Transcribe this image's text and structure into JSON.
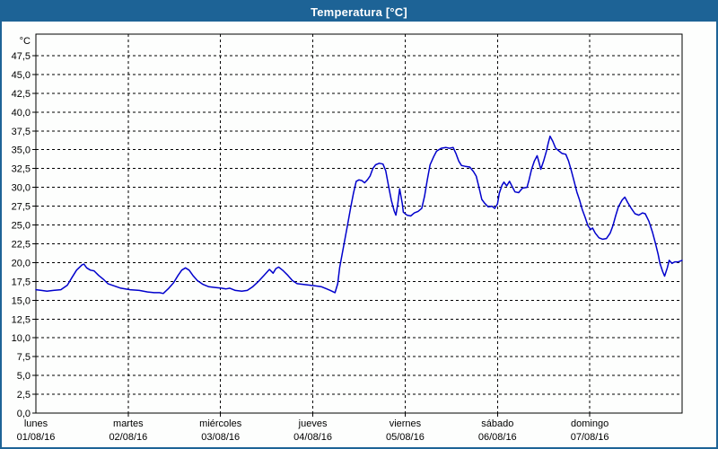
{
  "window": {
    "title": "Temperatura [°C]",
    "title_bg": "#1d6396",
    "title_color": "#ffffff",
    "frame_color": "#1d6396"
  },
  "chart_data": {
    "type": "line",
    "title": "Temperatura [°C]",
    "unit_label": "°C",
    "line_color": "#0000cc",
    "grid": "dashed",
    "plot_border_color": "#000000",
    "y_axis": {
      "min": 0,
      "max": 50,
      "tick_step": 2.5,
      "tick_values": [
        0,
        2.5,
        5,
        7.5,
        10,
        12.5,
        15,
        17.5,
        20,
        22.5,
        25,
        27.5,
        30,
        32.5,
        35,
        37.5,
        40,
        42.5,
        45,
        47.5
      ],
      "tick_labels": [
        "0,0",
        "2,5",
        "5,0",
        "7,5",
        "10,0",
        "12,5",
        "15,0",
        "17,5",
        "20,0",
        "22,5",
        "25,0",
        "27,5",
        "30,0",
        "32,5",
        "35,0",
        "37,5",
        "40,0",
        "42,5",
        "45,0",
        "47,5"
      ]
    },
    "x_axis": {
      "span_days": 7,
      "days": [
        {
          "name": "lunes",
          "date": "01/08/16"
        },
        {
          "name": "martes",
          "date": "02/08/16"
        },
        {
          "name": "miércoles",
          "date": "03/08/16"
        },
        {
          "name": "jueves",
          "date": "04/08/16"
        },
        {
          "name": "viernes",
          "date": "05/08/16"
        },
        {
          "name": "sábado",
          "date": "06/08/16"
        },
        {
          "name": "domingo",
          "date": "07/08/16"
        }
      ]
    },
    "series": [
      {
        "name": "Temperatura",
        "points": [
          [
            0,
            16.4
          ],
          [
            0.06,
            16.3
          ],
          [
            0.12,
            16.2
          ],
          [
            0.19,
            16.3
          ],
          [
            0.27,
            16.4
          ],
          [
            0.34,
            17.0
          ],
          [
            0.39,
            18.0
          ],
          [
            0.44,
            19.0
          ],
          [
            0.5,
            19.7
          ],
          [
            0.52,
            19.8
          ],
          [
            0.55,
            19.3
          ],
          [
            0.59,
            19.0
          ],
          [
            0.63,
            18.9
          ],
          [
            0.68,
            18.3
          ],
          [
            0.73,
            17.8
          ],
          [
            0.78,
            17.2
          ],
          [
            0.85,
            16.9
          ],
          [
            0.92,
            16.6
          ],
          [
            1.02,
            16.4
          ],
          [
            1.12,
            16.3
          ],
          [
            1.21,
            16.1
          ],
          [
            1.28,
            16.0
          ],
          [
            1.34,
            16.0
          ],
          [
            1.38,
            15.9
          ],
          [
            1.44,
            16.6
          ],
          [
            1.49,
            17.3
          ],
          [
            1.54,
            18.3
          ],
          [
            1.58,
            19.0
          ],
          [
            1.62,
            19.3
          ],
          [
            1.66,
            19.0
          ],
          [
            1.7,
            18.3
          ],
          [
            1.75,
            17.6
          ],
          [
            1.81,
            17.1
          ],
          [
            1.87,
            16.8
          ],
          [
            1.94,
            16.7
          ],
          [
            2.01,
            16.6
          ],
          [
            2.06,
            16.5
          ],
          [
            2.1,
            16.6
          ],
          [
            2.16,
            16.3
          ],
          [
            2.23,
            16.2
          ],
          [
            2.29,
            16.3
          ],
          [
            2.35,
            16.8
          ],
          [
            2.41,
            17.5
          ],
          [
            2.47,
            18.3
          ],
          [
            2.53,
            19.1
          ],
          [
            2.57,
            18.6
          ],
          [
            2.6,
            19.2
          ],
          [
            2.63,
            19.4
          ],
          [
            2.68,
            18.9
          ],
          [
            2.73,
            18.3
          ],
          [
            2.78,
            17.6
          ],
          [
            2.83,
            17.2
          ],
          [
            2.9,
            17.1
          ],
          [
            2.97,
            17.0
          ],
          [
            3.03,
            16.9
          ],
          [
            3.09,
            16.8
          ],
          [
            3.15,
            16.5
          ],
          [
            3.19,
            16.3
          ],
          [
            3.24,
            16.0
          ],
          [
            3.27,
            17.2
          ],
          [
            3.29,
            19.3
          ],
          [
            3.32,
            21.3
          ],
          [
            3.35,
            23.3
          ],
          [
            3.38,
            25.3
          ],
          [
            3.41,
            27.3
          ],
          [
            3.44,
            29.2
          ],
          [
            3.47,
            30.8
          ],
          [
            3.5,
            31.0
          ],
          [
            3.53,
            30.9
          ],
          [
            3.56,
            30.6
          ],
          [
            3.59,
            31.0
          ],
          [
            3.62,
            31.5
          ],
          [
            3.65,
            32.5
          ],
          [
            3.68,
            33.0
          ],
          [
            3.72,
            33.2
          ],
          [
            3.76,
            33.1
          ],
          [
            3.79,
            32.2
          ],
          [
            3.82,
            30.2
          ],
          [
            3.85,
            28.3
          ],
          [
            3.88,
            26.9
          ],
          [
            3.9,
            26.3
          ],
          [
            3.92,
            27.8
          ],
          [
            3.94,
            29.8
          ],
          [
            3.97,
            27.8
          ],
          [
            3.98,
            26.7
          ],
          [
            4.02,
            26.3
          ],
          [
            4.06,
            26.2
          ],
          [
            4.1,
            26.6
          ],
          [
            4.14,
            26.8
          ],
          [
            4.18,
            27.2
          ],
          [
            4.21,
            28.8
          ],
          [
            4.24,
            31.0
          ],
          [
            4.27,
            33.0
          ],
          [
            4.31,
            34.1
          ],
          [
            4.34,
            34.8
          ],
          [
            4.39,
            35.2
          ],
          [
            4.44,
            35.3
          ],
          [
            4.48,
            35.2
          ],
          [
            4.52,
            35.3
          ],
          [
            4.55,
            34.5
          ],
          [
            4.58,
            33.5
          ],
          [
            4.61,
            32.9
          ],
          [
            4.65,
            32.8
          ],
          [
            4.7,
            32.7
          ],
          [
            4.74,
            32.1
          ],
          [
            4.77,
            31.5
          ],
          [
            4.8,
            30.0
          ],
          [
            4.83,
            28.4
          ],
          [
            4.86,
            27.9
          ],
          [
            4.9,
            27.4
          ],
          [
            4.94,
            27.5
          ],
          [
            4.97,
            27.2
          ],
          [
            5.0,
            27.8
          ],
          [
            5.02,
            29.2
          ],
          [
            5.05,
            30.3
          ],
          [
            5.07,
            30.7
          ],
          [
            5.1,
            30.2
          ],
          [
            5.13,
            30.8
          ],
          [
            5.16,
            30.1
          ],
          [
            5.19,
            29.4
          ],
          [
            5.23,
            29.3
          ],
          [
            5.27,
            29.9
          ],
          [
            5.32,
            30.0
          ],
          [
            5.34,
            30.9
          ],
          [
            5.37,
            32.4
          ],
          [
            5.4,
            33.5
          ],
          [
            5.43,
            34.2
          ],
          [
            5.45,
            33.3
          ],
          [
            5.47,
            32.4
          ],
          [
            5.5,
            33.5
          ],
          [
            5.53,
            34.8
          ],
          [
            5.55,
            35.9
          ],
          [
            5.57,
            36.8
          ],
          [
            5.6,
            36.1
          ],
          [
            5.63,
            35.2
          ],
          [
            5.67,
            34.8
          ],
          [
            5.7,
            34.5
          ],
          [
            5.74,
            34.4
          ],
          [
            5.77,
            33.5
          ],
          [
            5.8,
            32.2
          ],
          [
            5.83,
            30.8
          ],
          [
            5.86,
            29.4
          ],
          [
            5.89,
            28.3
          ],
          [
            5.92,
            27.0
          ],
          [
            5.95,
            26.0
          ],
          [
            5.98,
            24.9
          ],
          [
            6.01,
            24.4
          ],
          [
            6.03,
            24.6
          ],
          [
            6.06,
            23.9
          ],
          [
            6.1,
            23.3
          ],
          [
            6.14,
            23.1
          ],
          [
            6.18,
            23.2
          ],
          [
            6.22,
            23.9
          ],
          [
            6.25,
            24.9
          ],
          [
            6.28,
            26.2
          ],
          [
            6.31,
            27.4
          ],
          [
            6.35,
            28.3
          ],
          [
            6.38,
            28.7
          ],
          [
            6.41,
            28.0
          ],
          [
            6.45,
            27.2
          ],
          [
            6.49,
            26.5
          ],
          [
            6.53,
            26.3
          ],
          [
            6.57,
            26.6
          ],
          [
            6.6,
            26.5
          ],
          [
            6.64,
            25.5
          ],
          [
            6.68,
            24.0
          ],
          [
            6.71,
            22.6
          ],
          [
            6.74,
            21.1
          ],
          [
            6.76,
            19.9
          ],
          [
            6.79,
            18.8
          ],
          [
            6.81,
            18.2
          ],
          [
            6.84,
            19.3
          ],
          [
            6.86,
            20.3
          ],
          [
            6.89,
            19.9
          ],
          [
            6.92,
            20.1
          ],
          [
            6.96,
            20.1
          ],
          [
            7.0,
            20.3
          ]
        ]
      }
    ]
  }
}
